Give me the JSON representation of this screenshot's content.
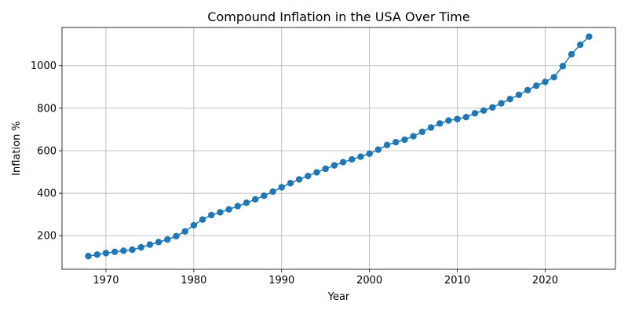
{
  "chart_data": {
    "type": "line",
    "title": "Compound Inflation in the USA Over Time",
    "xlabel": "Year",
    "ylabel": "Inflation %",
    "xlim": [
      1965,
      2028
    ],
    "ylim": [
      42,
      1180
    ],
    "xticks": [
      1970,
      1980,
      1990,
      2000,
      2010,
      2020
    ],
    "yticks": [
      200,
      400,
      600,
      800,
      1000
    ],
    "grid": true,
    "marker": "circle",
    "color": "#1f77b4",
    "x": [
      1968,
      1969,
      1970,
      1971,
      1972,
      1973,
      1974,
      1975,
      1976,
      1977,
      1978,
      1979,
      1980,
      1981,
      1982,
      1983,
      1984,
      1985,
      1986,
      1987,
      1988,
      1989,
      1990,
      1991,
      1992,
      1993,
      1994,
      1995,
      1996,
      1997,
      1998,
      1999,
      2000,
      2001,
      2002,
      2003,
      2004,
      2005,
      2006,
      2007,
      2008,
      2009,
      2010,
      2011,
      2012,
      2013,
      2014,
      2015,
      2016,
      2017,
      2018,
      2019,
      2020,
      2021,
      2022,
      2023,
      2024,
      2025
    ],
    "y": [
      104,
      111,
      118,
      124,
      129,
      134,
      145,
      158,
      170,
      182,
      198,
      220,
      249,
      276,
      297,
      310,
      324,
      339,
      355,
      371,
      388,
      407,
      428,
      447,
      465,
      481,
      498,
      515,
      531,
      546,
      559,
      572,
      586,
      605,
      627,
      640,
      652,
      668,
      689,
      709,
      728,
      742,
      749,
      758,
      776,
      789,
      804,
      823,
      843,
      863,
      885,
      906,
      924,
      946,
      998,
      1054,
      1099,
      1137
    ]
  }
}
